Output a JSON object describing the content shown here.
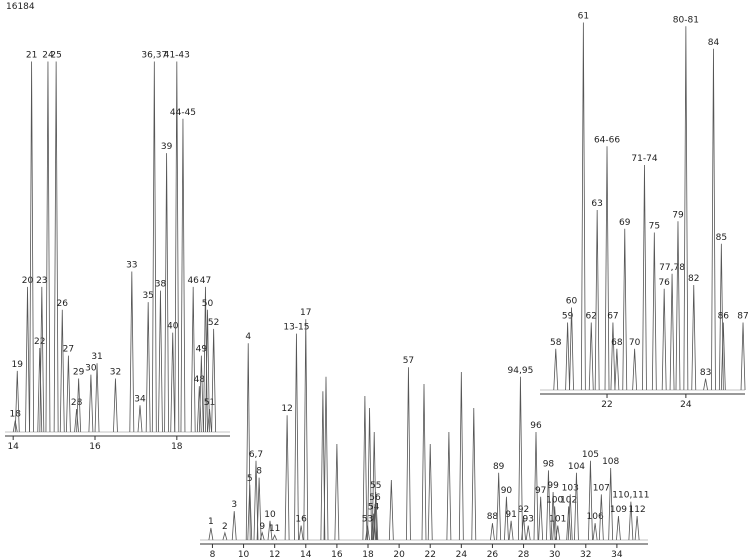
{
  "chart_data": [
    {
      "type": "peaks",
      "annotation": "16184",
      "x": [
        14.05,
        14.1,
        14.35,
        14.45,
        14.65,
        14.7,
        14.85,
        15.05,
        15.2,
        15.35,
        15.55,
        15.6,
        15.9,
        16.05,
        16.5,
        16.9,
        17.1,
        17.3,
        17.45,
        17.6,
        17.75,
        17.9,
        18.0,
        18.15,
        18.4,
        18.7,
        18.55,
        18.6,
        18.75,
        18.8,
        18.9
      ],
      "values": [
        3,
        16,
        38,
        97,
        22,
        38,
        97,
        97,
        32,
        20,
        6,
        14,
        15,
        18,
        14,
        42,
        7,
        34,
        97,
        37,
        73,
        26,
        97,
        82,
        38,
        38,
        12,
        20,
        32,
        6,
        27
      ],
      "labels": [
        "18",
        "19",
        "20",
        "21",
        "22",
        "23",
        "24",
        "25",
        "26",
        "27",
        "28",
        "29",
        "30",
        "31",
        "32",
        "33",
        "34",
        "35",
        "36,37",
        "38",
        "39",
        "40",
        "41-43",
        "44-45",
        "46",
        "47",
        "48",
        "49",
        "50",
        "51",
        "52"
      ],
      "xlim": [
        13.8,
        19.3
      ],
      "xticks": [
        14,
        16,
        18
      ]
    },
    {
      "type": "peaks",
      "x": [
        7.9,
        8.8,
        9.4,
        10.3,
        10.4,
        10.8,
        11.0,
        11.2,
        11.7,
        12.0,
        12.8,
        13.4,
        13.7,
        14.0,
        15.1,
        15.3,
        16.0,
        17.8,
        18.1,
        18.4,
        19.5,
        17.97,
        18.36,
        18.5,
        18.45,
        20.6,
        21.6,
        22.0,
        23.2,
        24.0,
        24.8,
        26.0,
        26.4,
        26.9,
        27.2,
        28.0,
        28.3,
        27.8,
        28.8,
        29.1,
        29.6,
        29.9,
        30.0,
        30.2,
        30.9,
        31.0,
        31.4,
        32.3,
        32.6,
        33.0,
        33.6,
        34.1,
        34.9,
        35.3
      ],
      "values": [
        5,
        3,
        12,
        82,
        23,
        33,
        26,
        3,
        8,
        2,
        52,
        86,
        6,
        92,
        62,
        68,
        40,
        60,
        55,
        45,
        25,
        6,
        11,
        20,
        15,
        72,
        65,
        40,
        45,
        70,
        55,
        7,
        28,
        18,
        8,
        10,
        6,
        68,
        45,
        18,
        29,
        20,
        14,
        6,
        14,
        19,
        28,
        33,
        7,
        19,
        30,
        10,
        16,
        10
      ],
      "labels": [
        "1",
        "2",
        "3",
        "4",
        "5",
        "6,7",
        "8",
        "9",
        "10",
        "11",
        "12",
        "13-15",
        "16",
        "17",
        null,
        null,
        null,
        null,
        null,
        null,
        null,
        "53",
        "54",
        "55",
        "56",
        "57",
        null,
        null,
        null,
        null,
        null,
        "88",
        "89",
        "90",
        "91",
        "92",
        "93",
        "94,95",
        "96",
        "97",
        "98",
        "99",
        "100",
        "101",
        "102",
        "103",
        "104",
        "105",
        "106",
        "107",
        "108",
        "109",
        "110,111",
        "112"
      ],
      "xlim": [
        7.2,
        36
      ],
      "xticks": [
        8,
        10,
        12,
        14,
        16,
        18,
        20,
        22,
        24,
        26,
        28,
        30,
        32,
        34
      ]
    },
    {
      "type": "peaks",
      "x": [
        20.7,
        21.0,
        21.1,
        21.4,
        21.6,
        21.75,
        22.0,
        22.15,
        22.25,
        22.45,
        22.7,
        22.95,
        23.2,
        23.45,
        23.65,
        23.8,
        24.0,
        24.2,
        24.5,
        24.7,
        24.9,
        24.95,
        25.45
      ],
      "values": [
        11,
        18,
        22,
        98,
        18,
        48,
        65,
        18,
        11,
        43,
        11,
        60,
        42,
        27,
        31,
        45,
        97,
        28,
        3,
        91,
        39,
        18,
        18
      ],
      "labels": [
        "58",
        "59",
        "60",
        "61",
        "62",
        "63",
        "64-66",
        "67",
        "68",
        "69",
        "70",
        "71-74",
        "75",
        "76",
        "77,78",
        "79",
        "80-81",
        "82",
        "83",
        "84",
        "85",
        "86",
        "87"
      ],
      "xlim": [
        20.3,
        25.5
      ],
      "xticks": [
        22,
        24
      ]
    }
  ]
}
